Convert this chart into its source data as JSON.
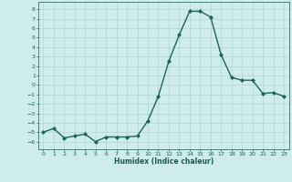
{
  "x": [
    0,
    1,
    2,
    3,
    4,
    5,
    6,
    7,
    8,
    9,
    10,
    11,
    12,
    13,
    14,
    15,
    16,
    17,
    18,
    19,
    20,
    21,
    22,
    23
  ],
  "y": [
    -5.0,
    -4.6,
    -5.6,
    -5.4,
    -5.2,
    -6.0,
    -5.5,
    -5.5,
    -5.5,
    -5.4,
    -3.8,
    -1.2,
    2.5,
    5.3,
    7.8,
    7.8,
    7.2,
    3.2,
    0.8,
    0.5,
    0.5,
    -0.9,
    -0.8,
    -1.2
  ],
  "line_color": "#1a6655",
  "marker": "D",
  "marker_size": 2,
  "xlabel": "Humidex (Indice chaleur)",
  "xlim": [
    -0.5,
    23.5
  ],
  "ylim": [
    -6.8,
    8.8
  ],
  "yticks": [
    -6,
    -5,
    -4,
    -3,
    -2,
    -1,
    0,
    1,
    2,
    3,
    4,
    5,
    6,
    7,
    8
  ],
  "xticks": [
    0,
    1,
    2,
    3,
    4,
    5,
    6,
    7,
    8,
    9,
    10,
    11,
    12,
    13,
    14,
    15,
    16,
    17,
    18,
    19,
    20,
    21,
    22,
    23
  ],
  "bg_color": "#ceecea",
  "grid_color": "#aed4d0",
  "fig_bg": "#ceecea",
  "font_color": "#1a5a50",
  "tick_fontsize": 4.5,
  "xlabel_fontsize": 5.5,
  "linewidth": 1.0
}
